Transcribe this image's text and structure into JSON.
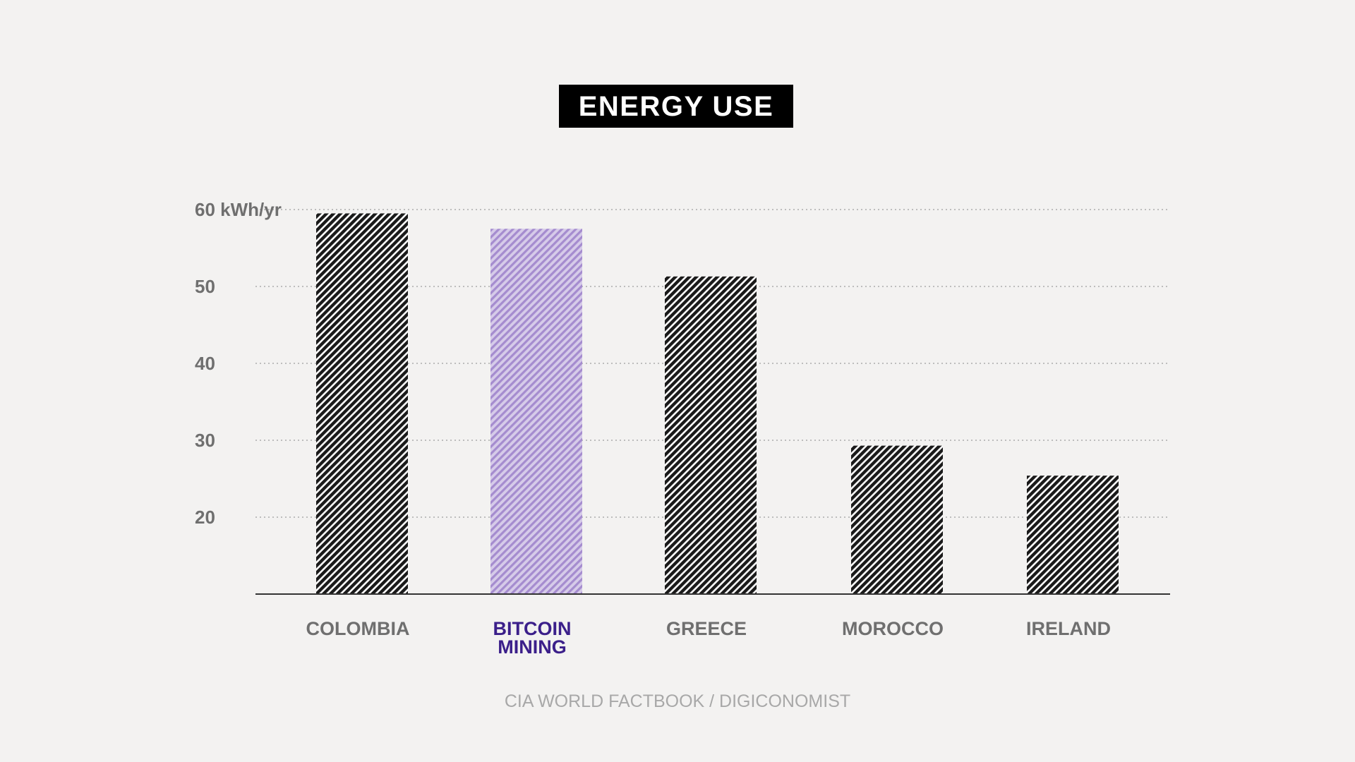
{
  "colors": {
    "background": "#f3f2f1",
    "bar_default": "#1a1a1a",
    "bar_highlight": "#b6a2d8",
    "label_default": "#6f6f6f",
    "label_highlight": "#3b1f8a",
    "gridline": "#bdbdbd",
    "axis": "#333333",
    "source": "#a8a8a8"
  },
  "chart_data": {
    "type": "bar",
    "title": "ENERGY USE",
    "ylabel": "",
    "xlabel": "",
    "unit_label": "kWh/yr",
    "y_ticks": [
      20,
      30,
      40,
      50,
      60
    ],
    "y_tick_labels": [
      "20",
      "30",
      "40",
      "50",
      "60 kWh/yr"
    ],
    "ylim": [
      10,
      60
    ],
    "grid": true,
    "bar_fill": "diagonal-hatch",
    "categories": [
      "COLOMBIA",
      "BITCOIN MINING",
      "GREECE",
      "MOROCCO",
      "IRELAND"
    ],
    "category_lines": [
      [
        "COLOMBIA"
      ],
      [
        "BITCOIN",
        "MINING"
      ],
      [
        "GREECE"
      ],
      [
        "MOROCCO"
      ],
      [
        "IRELAND"
      ]
    ],
    "values": [
      59.5,
      57.5,
      51.3,
      29.3,
      25.4
    ],
    "highlight": "BITCOIN MINING",
    "source": "CIA WORLD FACTBOOK / DIGICONOMIST"
  }
}
